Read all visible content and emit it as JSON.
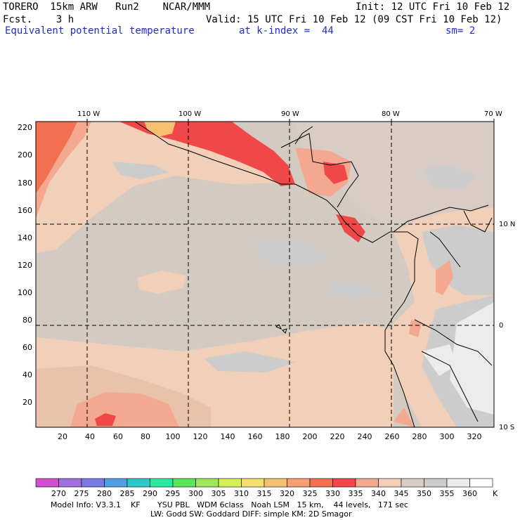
{
  "header": {
    "model": "TORERO  15km ARW   Run2    NCAR/MMM",
    "init": "Init: 12 UTC Fri 10 Feb 12",
    "fcst": "Fcst.    3 h",
    "valid": "Valid: 15 UTC Fri 10 Feb 12 (09 CST Fri 10 Feb 12)",
    "field": "Equivalent potential temperature",
    "kindex": "at k-index =  44",
    "sm": "sm= 2"
  },
  "axes": {
    "lon_labels": [
      "110 W",
      "100 W",
      "90 W",
      "80 W",
      "70 W"
    ],
    "lat_labels": [
      "10 N",
      "0",
      "10 S"
    ],
    "x_ticks": [
      "20",
      "40",
      "60",
      "80",
      "100",
      "120",
      "140",
      "160",
      "180",
      "200",
      "220",
      "240",
      "260",
      "280",
      "300",
      "320"
    ],
    "y_ticks": [
      "220",
      "200",
      "180",
      "160",
      "140",
      "120",
      "100",
      "80",
      "60",
      "40",
      "20"
    ]
  },
  "colorbar": {
    "levels": [
      "270",
      "275",
      "280",
      "285",
      "290",
      "295",
      "300",
      "305",
      "310",
      "315",
      "320",
      "325",
      "330",
      "335",
      "340",
      "345",
      "350",
      "355",
      "360"
    ],
    "unit": "K",
    "colors": [
      "#d24fd2",
      "#a070e0",
      "#7a7ae6",
      "#4f9ee6",
      "#2ec8c8",
      "#2ee6a0",
      "#5ae65a",
      "#a0e65a",
      "#d2f05a",
      "#f5e070",
      "#f5c070",
      "#f5a070",
      "#f27050",
      "#f04848",
      "#f5a890",
      "#f2cfb8",
      "#d8ccc4",
      "#cccccc",
      "#ececec",
      "#ffffff"
    ]
  },
  "footer": {
    "line1": "Model Info: V3.3.1    KF       YSU PBL   WDM 6class   Noah LSM   15 km,    44 levels,   171 sec",
    "line2": "LW: Godd SW: Goddard DIFF: simple KM: 2D Smagor"
  }
}
